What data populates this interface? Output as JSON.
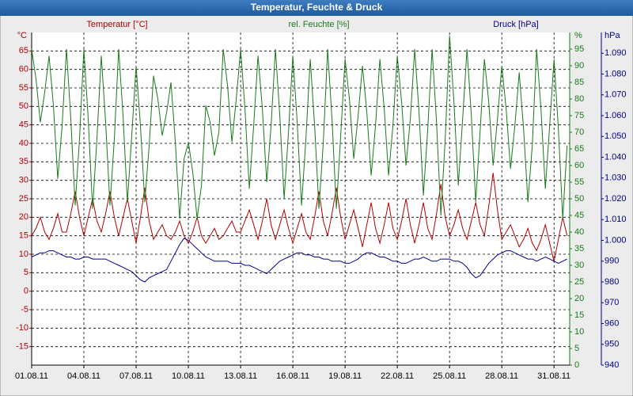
{
  "chart_data": {
    "type": "line",
    "title": "Temperatur, Feuchte & Druck",
    "x": [
      0,
      0.25,
      0.5,
      0.75,
      1,
      1.25,
      1.5,
      1.75,
      2,
      2.25,
      2.5,
      2.75,
      3,
      3.25,
      3.5,
      3.75,
      4,
      4.25,
      4.5,
      4.75,
      5,
      5.25,
      5.5,
      5.75,
      6,
      6.25,
      6.5,
      6.75,
      7,
      7.25,
      7.5,
      7.75,
      8,
      8.25,
      8.5,
      8.75,
      9,
      9.25,
      9.5,
      9.75,
      10,
      10.25,
      10.5,
      10.75,
      11,
      11.25,
      11.5,
      11.75,
      12,
      12.25,
      12.5,
      12.75,
      13,
      13.25,
      13.5,
      13.75,
      14,
      14.25,
      14.5,
      14.75,
      15,
      15.25,
      15.5,
      15.75,
      16,
      16.25,
      16.5,
      16.75,
      17,
      17.25,
      17.5,
      17.75,
      18,
      18.25,
      18.5,
      18.75,
      19,
      19.25,
      19.5,
      19.75,
      20,
      20.25,
      20.5,
      20.75,
      21,
      21.25,
      21.5,
      21.75,
      22,
      22.25,
      22.5,
      22.75,
      23,
      23.25,
      23.5,
      23.75,
      24,
      24.25,
      24.5,
      24.75,
      25,
      25.25,
      25.5,
      25.75,
      26,
      26.25,
      26.5,
      26.75,
      27,
      27.25,
      27.5,
      27.75,
      28,
      28.25,
      28.5,
      28.75,
      29,
      29.25,
      29.5,
      29.75,
      30,
      30.25,
      30.5,
      30.75
    ],
    "xlim": [
      0,
      30.9
    ],
    "xticks": [
      {
        "value": 0,
        "label": "01.08.11"
      },
      {
        "value": 3,
        "label": "04.08.11"
      },
      {
        "value": 6,
        "label": "07.08.11"
      },
      {
        "value": 9,
        "label": "10.08.11"
      },
      {
        "value": 12,
        "label": "13.08.11"
      },
      {
        "value": 15,
        "label": "16.08.11"
      },
      {
        "value": 18,
        "label": "19.08.11"
      },
      {
        "value": 21,
        "label": "22.08.11"
      },
      {
        "value": 24,
        "label": "25.08.11"
      },
      {
        "value": 27,
        "label": "28.08.11"
      },
      {
        "value": 30,
        "label": "31.08.11"
      }
    ],
    "y_unit": "°C",
    "ylim": [
      -20,
      70
    ],
    "yticks": [
      -15,
      -10,
      -5,
      0,
      5,
      10,
      15,
      20,
      25,
      30,
      35,
      40,
      45,
      50,
      55,
      60,
      65
    ],
    "y2_unit": "%",
    "y2lim": [
      0,
      100
    ],
    "y2ticks": [
      0,
      5,
      10,
      15,
      20,
      25,
      30,
      35,
      40,
      45,
      50,
      55,
      60,
      65,
      70,
      75,
      80,
      85,
      90,
      95
    ],
    "y3_unit": "hPa",
    "y3lim": [
      940,
      1100
    ],
    "y3ticks": [
      940,
      950,
      960,
      970,
      980,
      990,
      {
        "value": 1000,
        "label": "1.000"
      },
      {
        "value": 1010,
        "label": "1.010"
      },
      {
        "value": 1020,
        "label": "1.020"
      },
      {
        "value": 1030,
        "label": "1.030"
      },
      {
        "value": 1040,
        "label": "1.040"
      },
      {
        "value": 1050,
        "label": "1.050"
      },
      {
        "value": 1060,
        "label": "1.060"
      },
      {
        "value": 1070,
        "label": "1.070"
      },
      {
        "value": 1080,
        "label": "1.080"
      },
      {
        "value": 1090,
        "label": "1.090"
      }
    ],
    "grid": true,
    "series": [
      {
        "name": "Temperatur [°C]",
        "color": "#b00000",
        "axis": "y",
        "values": [
          15,
          17,
          20,
          16,
          14,
          17,
          21,
          16,
          16,
          21,
          27,
          20,
          15,
          20,
          25,
          19,
          16,
          21,
          27,
          20,
          15,
          20,
          25,
          19,
          13,
          20,
          28,
          19,
          14,
          16,
          18,
          15,
          14,
          16,
          19,
          15,
          13,
          16,
          20,
          15,
          13,
          15,
          17,
          14,
          15,
          17,
          19,
          16,
          16,
          19,
          22,
          18,
          14,
          19,
          25,
          18,
          14,
          18,
          22,
          17,
          13,
          17,
          21,
          16,
          14,
          20,
          27,
          19,
          15,
          21,
          28,
          20,
          14,
          18,
          22,
          17,
          12,
          18,
          24,
          17,
          13,
          18,
          24,
          17,
          14,
          19,
          25,
          18,
          13,
          18,
          24,
          17,
          14,
          21,
          29,
          20,
          15,
          18,
          22,
          17,
          14,
          19,
          24,
          18,
          15,
          23,
          32,
          22,
          14,
          16,
          18,
          15,
          12,
          14,
          17,
          13,
          11,
          14,
          18,
          13,
          8,
          14,
          20,
          15
        ]
      },
      {
        "name": "rel. Feuchte [%]",
        "color": "#1a7a1a",
        "axis": "y2",
        "values": [
          95,
          86,
          73,
          82,
          93,
          78,
          56,
          72,
          95,
          74,
          48,
          68,
          95,
          74,
          47,
          68,
          93,
          73,
          48,
          68,
          95,
          75,
          49,
          69,
          90,
          72,
          49,
          66,
          87,
          80,
          69,
          76,
          85,
          67,
          44,
          62,
          67,
          58,
          44,
          54,
          78,
          73,
          63,
          70,
          95,
          84,
          67,
          80,
          95,
          77,
          53,
          72,
          93,
          77,
          55,
          72,
          95,
          75,
          50,
          70,
          93,
          73,
          48,
          68,
          92,
          72,
          47,
          67,
          95,
          74,
          47,
          69,
          92,
          80,
          62,
          75,
          90,
          76,
          57,
          72,
          92,
          77,
          57,
          72,
          93,
          79,
          60,
          74,
          95,
          76,
          51,
          71,
          95,
          73,
          45,
          68,
          99,
          79,
          54,
          74,
          95,
          75,
          49,
          70,
          92,
          79,
          60,
          74,
          90,
          77,
          59,
          72,
          88,
          71,
          49,
          66,
          95,
          77,
          53,
          72,
          92,
          71,
          44,
          66
        ]
      },
      {
        "name": "Druck [hPa]",
        "color": "#00008b",
        "axis": "y3",
        "values": [
          992,
          993,
          994,
          994,
          995,
          995,
          994,
          993,
          992,
          992,
          991,
          991,
          992,
          992,
          991,
          991,
          991,
          991,
          990,
          989,
          988,
          987,
          986,
          985,
          983,
          981,
          980,
          982,
          983,
          984,
          985,
          986,
          990,
          994,
          998,
          1001,
          1000,
          998,
          996,
          994,
          992,
          991,
          990,
          990,
          990,
          990,
          989,
          989,
          989,
          988,
          988,
          987,
          986,
          985,
          984,
          986,
          988,
          990,
          991,
          992,
          993,
          994,
          994,
          993,
          993,
          992,
          992,
          991,
          991,
          990,
          990,
          990,
          989,
          989,
          990,
          991,
          993,
          994,
          994,
          993,
          992,
          992,
          991,
          990,
          990,
          989,
          989,
          990,
          991,
          991,
          992,
          991,
          990,
          990,
          991,
          991,
          991,
          990,
          990,
          989,
          987,
          984,
          982,
          983,
          986,
          989,
          991,
          993,
          994,
          995,
          995,
          994,
          993,
          992,
          991,
          991,
          990,
          991,
          992,
          991,
          990,
          989,
          990,
          991
        ]
      }
    ]
  }
}
